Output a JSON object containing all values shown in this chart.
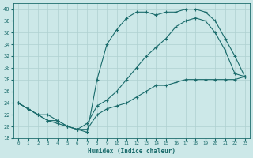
{
  "xlabel": "Humidex (Indice chaleur)",
  "bg_color": "#cce8e8",
  "line_color": "#1a6b6b",
  "grid_color": "#afd0d0",
  "xlim": [
    -0.5,
    23.5
  ],
  "ylim": [
    18,
    41
  ],
  "xticks": [
    0,
    1,
    2,
    3,
    4,
    5,
    6,
    7,
    8,
    9,
    10,
    11,
    12,
    13,
    14,
    15,
    16,
    17,
    18,
    19,
    20,
    21,
    22,
    23
  ],
  "yticks": [
    18,
    20,
    22,
    24,
    26,
    28,
    30,
    32,
    34,
    36,
    38,
    40
  ],
  "line1_x": [
    0,
    1,
    2,
    3,
    4,
    5,
    6,
    7,
    8,
    9,
    10,
    11,
    12,
    13,
    14,
    15,
    16,
    17,
    18,
    19,
    20,
    21,
    22,
    23
  ],
  "line1_y": [
    24,
    23,
    22,
    21,
    20.5,
    20,
    19.5,
    20.5,
    23.5,
    24.5,
    26,
    28,
    30,
    32,
    33.5,
    35,
    37,
    38,
    38.5,
    38,
    36,
    33,
    29,
    28.5
  ],
  "line2_x": [
    0,
    2,
    3,
    4,
    5,
    6,
    7,
    8,
    9,
    10,
    11,
    12,
    13,
    14,
    15,
    16,
    17,
    18,
    19,
    20,
    21,
    22,
    23
  ],
  "line2_y": [
    24,
    22,
    22,
    21,
    20,
    19.5,
    19,
    28,
    34,
    36.5,
    38.5,
    39.5,
    39.5,
    39,
    39.5,
    39.5,
    40,
    40,
    39.5,
    38,
    35,
    32,
    28.5
  ],
  "line3_x": [
    0,
    1,
    2,
    3,
    4,
    5,
    6,
    7,
    8,
    9,
    10,
    11,
    12,
    13,
    14,
    15,
    16,
    17,
    18,
    19,
    20,
    21,
    22,
    23
  ],
  "line3_y": [
    24,
    23,
    22,
    21,
    21,
    20,
    19.5,
    19.5,
    22,
    23,
    23.5,
    24,
    25,
    26,
    27,
    27,
    27.5,
    28,
    28,
    28,
    28,
    28,
    28,
    28.5
  ]
}
